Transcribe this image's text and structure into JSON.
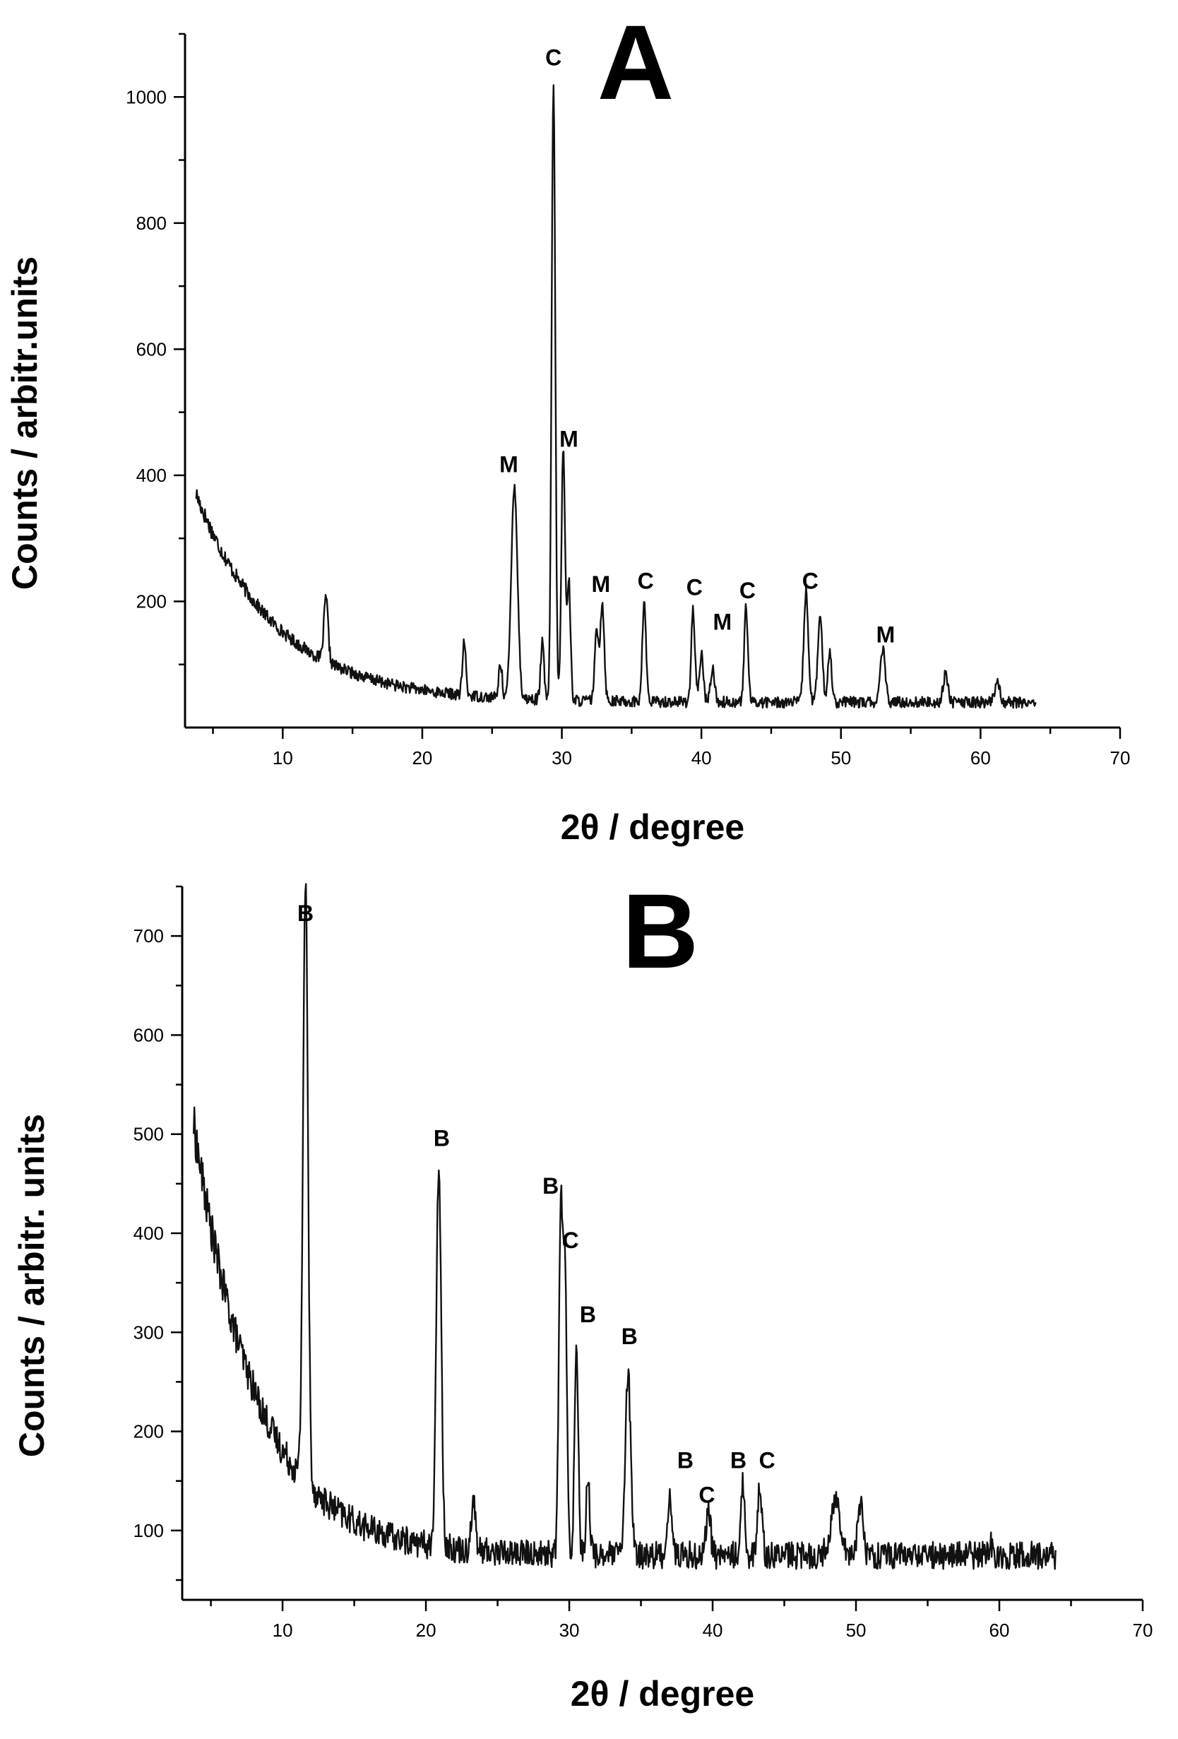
{
  "chart_data": [
    {
      "type": "line",
      "panel_label": "A",
      "xlabel": "2θ / degree",
      "ylabel": "Counts / arbitr.units",
      "xlim": [
        3,
        70
      ],
      "ylim": [
        0,
        1100
      ],
      "xticks": [
        10,
        20,
        30,
        40,
        50,
        60,
        70
      ],
      "yticks": [
        200,
        400,
        600,
        800,
        1000
      ],
      "grid": false,
      "background": {
        "start": 370,
        "decay": 2.6,
        "floor": 40,
        "x_start": 3.8,
        "x_end": 64
      },
      "peaks": [
        {
          "x": 13.1,
          "y": 140,
          "w": 0.15
        },
        {
          "x": 23.0,
          "y": 125,
          "w": 0.12
        },
        {
          "x": 25.6,
          "y": 95,
          "w": 0.12
        },
        {
          "x": 26.6,
          "y": 380,
          "w": 0.22
        },
        {
          "x": 28.6,
          "y": 130,
          "w": 0.12
        },
        {
          "x": 29.4,
          "y": 1015,
          "w": 0.13
        },
        {
          "x": 30.1,
          "y": 440,
          "w": 0.13
        },
        {
          "x": 30.5,
          "y": 230,
          "w": 0.12
        },
        {
          "x": 32.5,
          "y": 150,
          "w": 0.14
        },
        {
          "x": 32.9,
          "y": 195,
          "w": 0.14
        },
        {
          "x": 35.9,
          "y": 200,
          "w": 0.13
        },
        {
          "x": 39.4,
          "y": 185,
          "w": 0.13
        },
        {
          "x": 40.0,
          "y": 115,
          "w": 0.14
        },
        {
          "x": 40.8,
          "y": 95,
          "w": 0.14
        },
        {
          "x": 43.2,
          "y": 190,
          "w": 0.13
        },
        {
          "x": 47.5,
          "y": 215,
          "w": 0.16
        },
        {
          "x": 48.5,
          "y": 175,
          "w": 0.16
        },
        {
          "x": 49.2,
          "y": 120,
          "w": 0.14
        },
        {
          "x": 53.0,
          "y": 125,
          "w": 0.17
        },
        {
          "x": 57.5,
          "y": 85,
          "w": 0.17
        },
        {
          "x": 61.2,
          "y": 75,
          "w": 0.17
        }
      ],
      "labels": [
        {
          "text": "C",
          "x": 29.4,
          "y": 1050
        },
        {
          "text": "M",
          "x": 26.2,
          "y": 405
        },
        {
          "text": "M",
          "x": 30.5,
          "y": 445
        },
        {
          "text": "M",
          "x": 32.8,
          "y": 215
        },
        {
          "text": "C",
          "x": 36.0,
          "y": 220
        },
        {
          "text": "C",
          "x": 39.5,
          "y": 210
        },
        {
          "text": "M",
          "x": 41.5,
          "y": 155
        },
        {
          "text": "C",
          "x": 43.3,
          "y": 205
        },
        {
          "text": "C",
          "x": 47.8,
          "y": 220
        },
        {
          "text": "M",
          "x": 53.2,
          "y": 135
        }
      ]
    },
    {
      "type": "line",
      "panel_label": "B",
      "xlabel": "2θ / degree",
      "ylabel": "Counts / arbitr. units",
      "xlim": [
        3,
        70
      ],
      "ylim": [
        30,
        750
      ],
      "xticks": [
        10,
        20,
        30,
        40,
        50,
        60,
        70
      ],
      "yticks": [
        100,
        200,
        300,
        400,
        500,
        600,
        700
      ],
      "grid": false,
      "background": {
        "start": 510,
        "decay": 2.0,
        "floor": 75,
        "x_start": 3.8,
        "x_end": 64
      },
      "peaks": [
        {
          "x": 11.6,
          "y": 680,
          "w": 0.17
        },
        {
          "x": 20.9,
          "y": 460,
          "w": 0.17
        },
        {
          "x": 23.3,
          "y": 125,
          "w": 0.15
        },
        {
          "x": 29.4,
          "y": 415,
          "w": 0.13
        },
        {
          "x": 29.7,
          "y": 360,
          "w": 0.13
        },
        {
          "x": 30.5,
          "y": 285,
          "w": 0.13
        },
        {
          "x": 31.3,
          "y": 150,
          "w": 0.13
        },
        {
          "x": 34.1,
          "y": 260,
          "w": 0.18
        },
        {
          "x": 37.0,
          "y": 135,
          "w": 0.15
        },
        {
          "x": 39.7,
          "y": 125,
          "w": 0.15
        },
        {
          "x": 42.1,
          "y": 145,
          "w": 0.15
        },
        {
          "x": 43.3,
          "y": 145,
          "w": 0.15
        },
        {
          "x": 48.6,
          "y": 130,
          "w": 0.35
        },
        {
          "x": 50.3,
          "y": 125,
          "w": 0.2
        },
        {
          "x": 59.4,
          "y": 85,
          "w": 0.15
        }
      ],
      "labels": [
        {
          "text": "B",
          "x": 11.6,
          "y": 715
        },
        {
          "text": "B",
          "x": 21.1,
          "y": 488
        },
        {
          "text": "B",
          "x": 28.7,
          "y": 440
        },
        {
          "text": "C",
          "x": 30.1,
          "y": 385
        },
        {
          "text": "B",
          "x": 31.3,
          "y": 310
        },
        {
          "text": "B",
          "x": 34.2,
          "y": 288
        },
        {
          "text": "B",
          "x": 38.1,
          "y": 163
        },
        {
          "text": "C",
          "x": 39.6,
          "y": 128
        },
        {
          "text": "B",
          "x": 41.8,
          "y": 163
        },
        {
          "text": "C",
          "x": 43.8,
          "y": 163
        }
      ]
    }
  ]
}
